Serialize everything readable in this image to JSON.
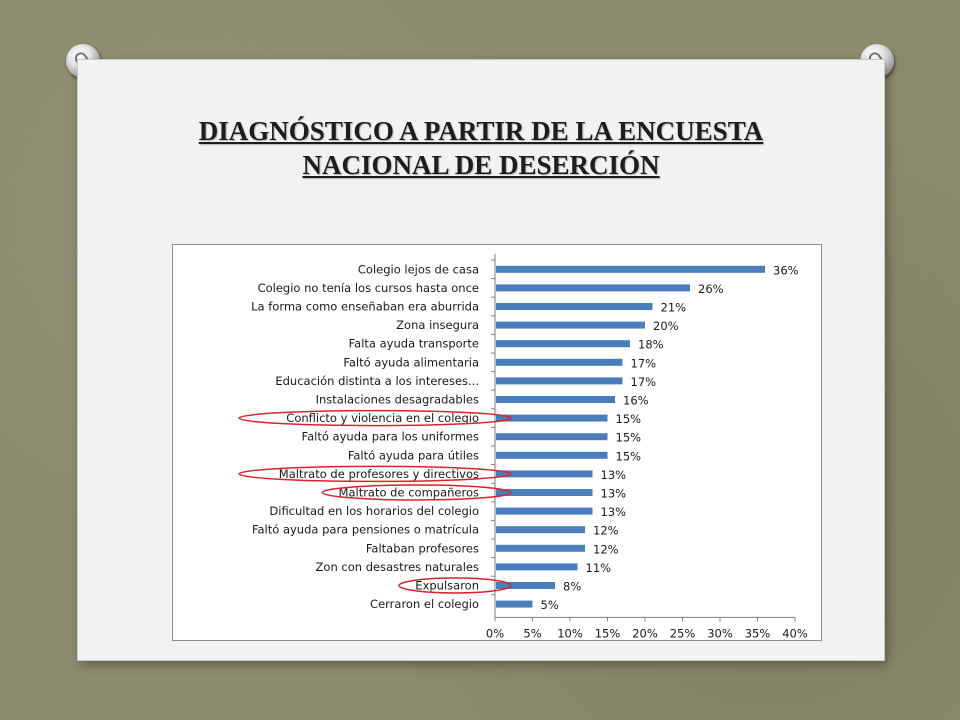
{
  "slide": {
    "title_line1": "DIAGNÓSTICO A PARTIR DE LA ENCUESTA",
    "title_line2": "NACIONAL DE DESERCIÓN"
  },
  "colors": {
    "bar": "#4a7ebb",
    "highlight_ellipse": "#d9232b",
    "axis": "#7f7f7f"
  },
  "chart_data": {
    "type": "bar",
    "orientation": "horizontal",
    "title": "",
    "xlabel": "",
    "ylabel": "",
    "categories": [
      "Colegio lejos de casa",
      "Colegio no tenía los cursos hasta once",
      "La forma como enseñaban era aburrida",
      "Zona insegura",
      "Falta ayuda transporte",
      "Faltó ayuda alimentaria",
      "Educación distinta a los intereses...",
      "Instalaciones desagradables",
      "Conflicto y violencia en el colegio",
      "Faltó ayuda para los uniformes",
      "Faltó ayuda para útiles",
      "Maltrato de profesores y directivos",
      "Maltrato de compañeros",
      "Dificultad en los horarios del colegio",
      "Faltó ayuda para pensiones o matrícula",
      "Faltaban profesores",
      "Zon con desastres naturales",
      "Expulsaron",
      "Cerraron el colegio"
    ],
    "values": [
      36,
      26,
      21,
      20,
      18,
      17,
      17,
      16,
      15,
      15,
      15,
      13,
      13,
      13,
      12,
      12,
      11,
      8,
      5
    ],
    "value_labels": [
      "36%",
      "26%",
      "21%",
      "20%",
      "18%",
      "17%",
      "17%",
      "16%",
      "15%",
      "15%",
      "15%",
      "13%",
      "13%",
      "13%",
      "12%",
      "12%",
      "11%",
      "8%",
      "5%"
    ],
    "highlighted": [
      "Conflicto y violencia en el colegio",
      "Maltrato de profesores y directivos",
      "Maltrato de compañeros",
      "Expulsaron"
    ],
    "xlim": [
      0,
      40
    ],
    "x_ticks": [
      "0%",
      "5%",
      "10%",
      "15%",
      "20%",
      "25%",
      "30%",
      "35%",
      "40%"
    ],
    "grid": false,
    "legend": "none"
  }
}
